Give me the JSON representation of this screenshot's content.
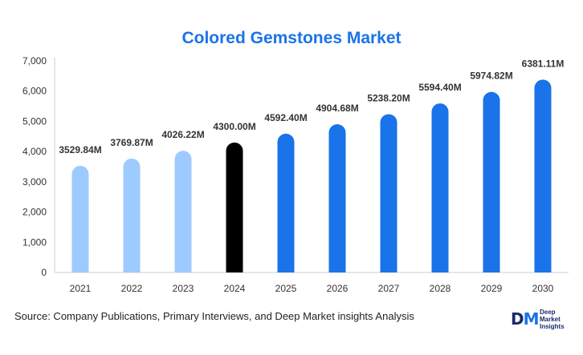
{
  "chart_data": {
    "type": "bar",
    "title": "Colored Gemstones Market",
    "categories": [
      "2021",
      "2022",
      "2023",
      "2024",
      "2025",
      "2026",
      "2027",
      "2028",
      "2029",
      "2030"
    ],
    "values": [
      3529.84,
      3769.87,
      4026.22,
      4300.0,
      4592.4,
      4904.68,
      5238.2,
      5594.4,
      5974.82,
      6381.11
    ],
    "data_labels": [
      "3529.84M",
      "3769.87M",
      "4026.22M",
      "4300.00M",
      "4592.40M",
      "4904.68M",
      "5238.20M",
      "5594.40M",
      "5974.82M",
      "6381.11M"
    ],
    "bar_colors": [
      "#9ecbff",
      "#9ecbff",
      "#9ecbff",
      "#000000",
      "#1a73e8",
      "#1a73e8",
      "#1a73e8",
      "#1a73e8",
      "#1a73e8",
      "#1a73e8"
    ],
    "y_ticks": [
      0,
      1000,
      2000,
      3000,
      4000,
      5000,
      6000,
      7000
    ],
    "y_tick_labels": [
      "0",
      "1,000",
      "2,000",
      "3,000",
      "4,000",
      "5,000",
      "6,000",
      "7,000"
    ],
    "ylim": [
      0,
      7000
    ],
    "xlabel": "",
    "ylabel": "",
    "grid": false,
    "legend": "none"
  },
  "footer": {
    "source_label": "Source",
    "source_text": ": Company Publications, Primary Interviews, and Deep Market insights Analysis"
  },
  "logo": {
    "mark_d": "D",
    "mark_m": "M",
    "line1": "Deep",
    "line2": "Market",
    "line3": "Insights"
  },
  "colors": {
    "title": "#1a73e8",
    "axis": "#cccccc",
    "text": "#333333"
  }
}
